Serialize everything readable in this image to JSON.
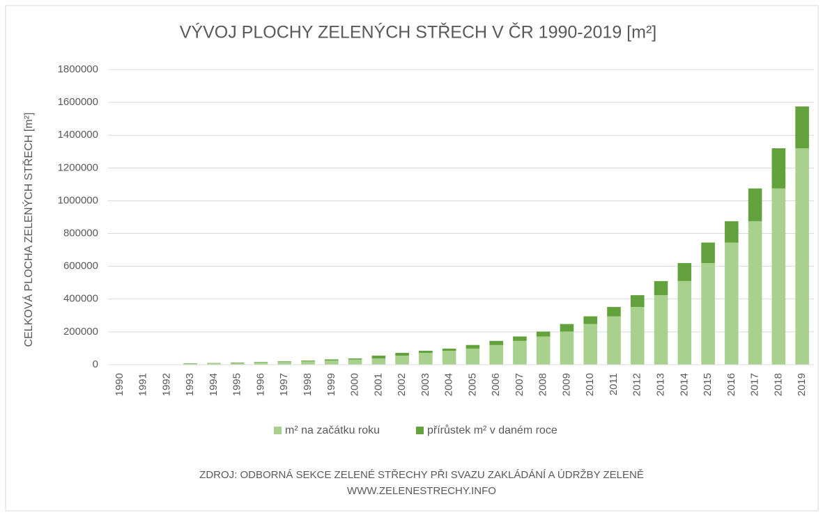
{
  "chart_data": {
    "type": "stacked_bar",
    "title": "VÝVOJ PLOCHY ZELENÝCH STŘECH V ČR 1990-2019 [m²]",
    "y_label": "CELKOVÁ PLOCHA ZELENÝCH STŘECH [m²]",
    "source": [
      "ZDROJ: ODBORNÁ SEKCE ZELENÉ STŘECHY PŘI SVAZU ZAKLÁDÁNÍ A ÚDRŽBY ZELENĚ",
      "WWW.ZELENESTRECHY.INFO"
    ],
    "categories": [
      "1990",
      "1991",
      "1992",
      "1993",
      "1994",
      "1995",
      "1996",
      "1997",
      "1998",
      "1999",
      "2000",
      "2001",
      "2002",
      "2003",
      "2004",
      "2005",
      "2006",
      "2007",
      "2008",
      "2009",
      "2010",
      "2011",
      "2012",
      "2013",
      "2014",
      "2015",
      "2016",
      "2017",
      "2018",
      "2019"
    ],
    "series": [
      {
        "name": "m² na začátku roku",
        "color": "#a9d18e",
        "values": [
          0,
          0,
          0,
          5000,
          8000,
          10000,
          13000,
          16000,
          20000,
          25000,
          32000,
          38000,
          55000,
          72000,
          85000,
          98000,
          120000,
          145000,
          172000,
          202000,
          248000,
          295000,
          352000,
          424000,
          510000,
          620000,
          745000,
          875000,
          1075000,
          1320000
        ]
      },
      {
        "name": "přírůstek m² v daném roce",
        "color": "#62a13b",
        "values": [
          0,
          0,
          0,
          3000,
          2000,
          3000,
          3000,
          4000,
          5000,
          7000,
          6000,
          17000,
          17000,
          13000,
          13000,
          22000,
          25000,
          27000,
          30000,
          46000,
          47000,
          57000,
          72000,
          86000,
          110000,
          125000,
          130000,
          200000,
          245000,
          255000
        ]
      }
    ],
    "ylim": [
      0,
      1800000
    ],
    "yticks": [
      0,
      200000,
      400000,
      600000,
      800000,
      1000000,
      1200000,
      1400000,
      1600000,
      1800000
    ],
    "grid": true,
    "legend": "bottom"
  }
}
